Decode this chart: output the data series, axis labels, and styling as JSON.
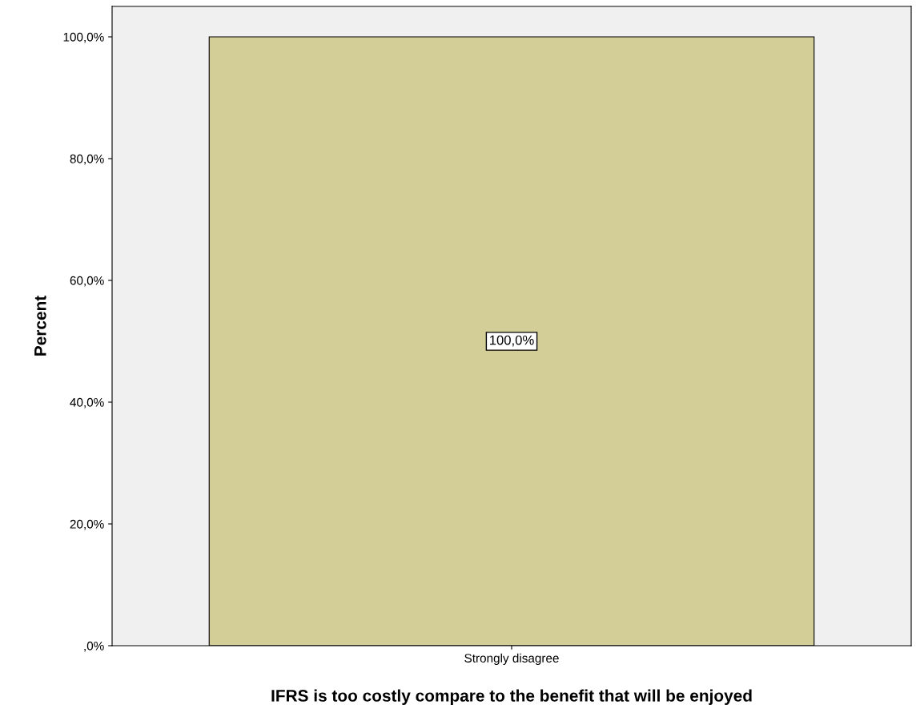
{
  "chart_data": {
    "type": "bar",
    "xlabel": "IFRS is too costly compare to the benefit that will be enjoyed",
    "ylabel": "Percent",
    "categories": [
      "Strongly disagree"
    ],
    "values": [
      100
    ],
    "color": "#d3ce97",
    "value_labels": [
      "100,0%"
    ],
    "ylim": [
      0,
      105
    ],
    "yticks": [
      {
        "value": 0,
        "label": ",0%"
      },
      {
        "value": 20,
        "label": "20,0%"
      },
      {
        "value": 40,
        "label": "40,0%"
      },
      {
        "value": 60,
        "label": "60,0%"
      },
      {
        "value": 80,
        "label": "80,0%"
      },
      {
        "value": 100,
        "label": "100,0%"
      }
    ],
    "grid": false,
    "legend": false
  }
}
